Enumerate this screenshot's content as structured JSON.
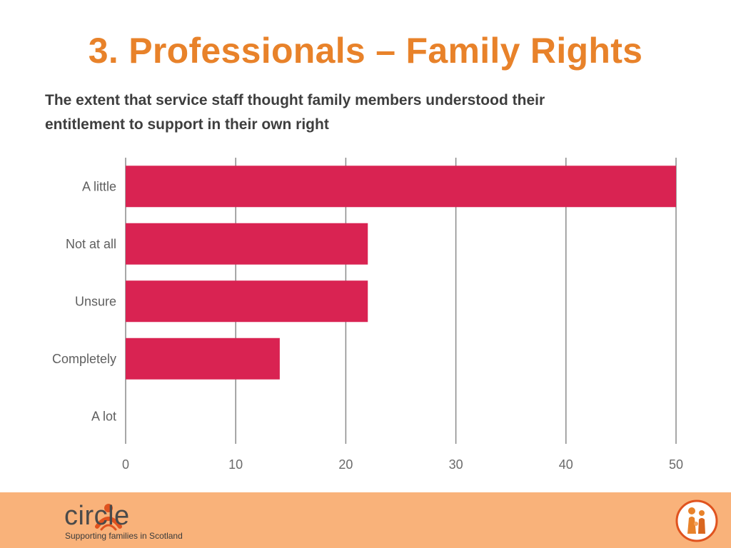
{
  "slide": {
    "title": "3. Professionals – Family Rights"
  },
  "chart_data": {
    "type": "bar",
    "orientation": "horizontal",
    "title": "The extent that service staff thought family members understood their entitlement to support in their own right",
    "categories": [
      "A little",
      "Not at all",
      "Unsure",
      "Completely",
      "A lot"
    ],
    "values": [
      50,
      22,
      22,
      14,
      0
    ],
    "xlim": [
      0,
      50
    ],
    "x_ticks": [
      0,
      10,
      20,
      30,
      40,
      50
    ],
    "xlabel": "",
    "ylabel": "",
    "grid": true,
    "bar_color": "#d92352"
  },
  "footer": {
    "brand_name": "circle",
    "tagline": "Supporting families in Scotland",
    "accent_color": "#f9b27a",
    "logo_icon": "person-arc-icon",
    "badge_icon": "family-figures-icon"
  }
}
